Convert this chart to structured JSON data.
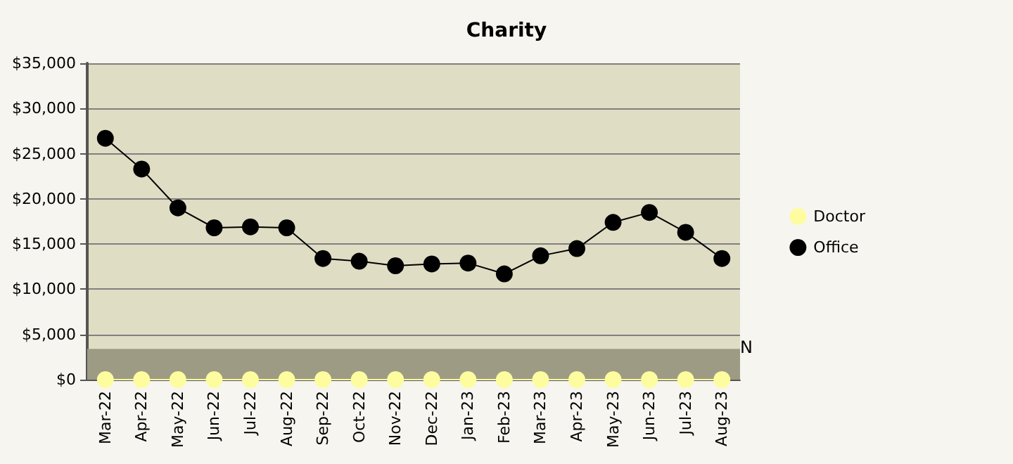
{
  "chart_data": {
    "type": "line",
    "title": "Charity",
    "categories": [
      "Mar-22",
      "Apr-22",
      "May-22",
      "Jun-22",
      "Jul-22",
      "Aug-22",
      "Sep-22",
      "Oct-22",
      "Nov-22",
      "Dec-22",
      "Jan-23",
      "Feb-23",
      "Mar-23",
      "Apr-23",
      "May-23",
      "Jun-23",
      "Jul-23",
      "Aug-23"
    ],
    "series": [
      {
        "name": "Doctor",
        "color": "#fdfd9f",
        "values": [
          0,
          0,
          0,
          0,
          0,
          0,
          0,
          0,
          0,
          0,
          0,
          0,
          0,
          0,
          0,
          0,
          0,
          0
        ]
      },
      {
        "name": "Office",
        "color": "#000000",
        "values": [
          26700,
          23300,
          19000,
          16800,
          16900,
          16800,
          13400,
          13100,
          12600,
          12800,
          12900,
          11700,
          13700,
          14500,
          17400,
          18500,
          16300,
          13400
        ]
      }
    ],
    "ylim": [
      0,
      35000
    ],
    "yticks": [
      {
        "value": 0,
        "label": "$0"
      },
      {
        "value": 5000,
        "label": "$5,000"
      },
      {
        "value": 10000,
        "label": "$10,000"
      },
      {
        "value": 15000,
        "label": "$15,000"
      },
      {
        "value": 20000,
        "label": "$20,000"
      },
      {
        "value": 25000,
        "label": "$25,000"
      },
      {
        "value": 30000,
        "label": "$30,000"
      },
      {
        "value": 35000,
        "label": "$35,000"
      }
    ],
    "bands": [
      {
        "axis": "y",
        "from": 0,
        "to": 3400,
        "label": "N",
        "color": "#9e9b85"
      }
    ],
    "grid": "y",
    "legend": "right",
    "marker": "circle"
  }
}
